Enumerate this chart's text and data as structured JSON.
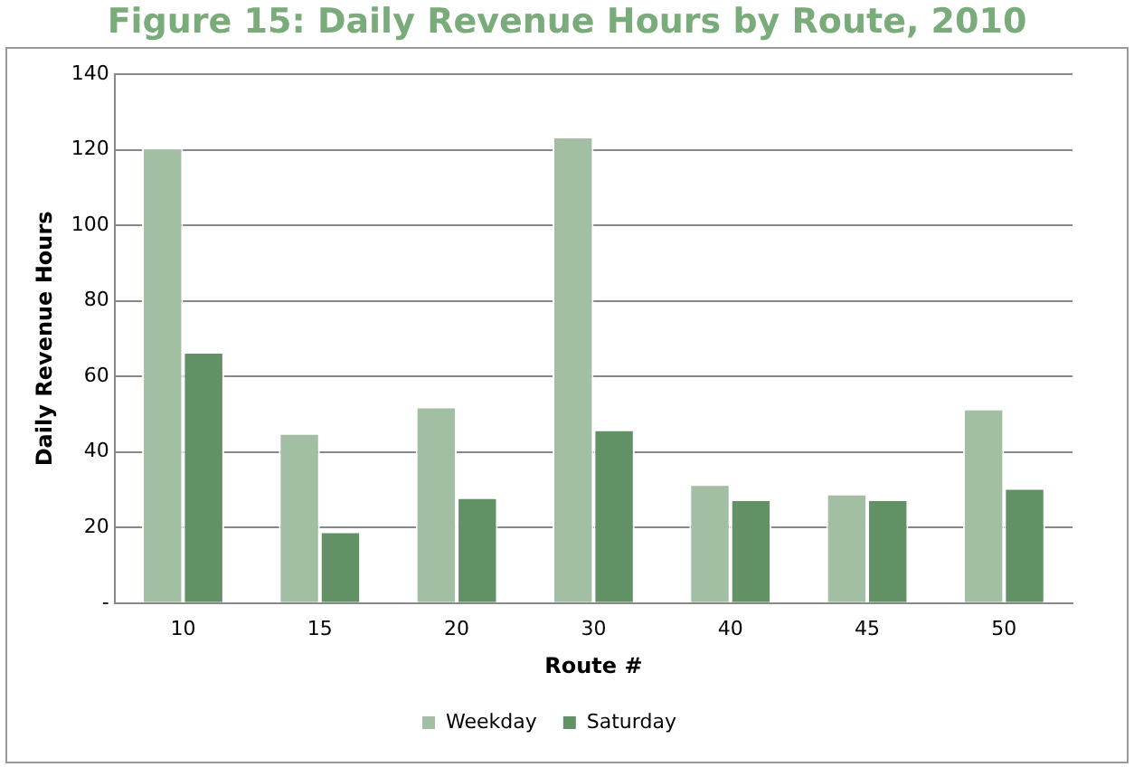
{
  "chart_data": {
    "type": "bar",
    "title": "Figure 15: Daily Revenue Hours by Route, 2010",
    "xlabel": "Route #",
    "ylabel": "Daily Revenue Hours",
    "categories": [
      "10",
      "15",
      "20",
      "30",
      "40",
      "45",
      "50"
    ],
    "series": [
      {
        "name": "Weekday",
        "color": "#a3bfa3",
        "values": [
          120.5,
          45,
          52,
          123.5,
          31.5,
          29,
          51.5
        ]
      },
      {
        "name": "Saturday",
        "color": "#629166",
        "values": [
          66.5,
          19,
          28,
          46,
          27.5,
          27.5,
          30.5
        ]
      }
    ],
    "ylim": [
      0,
      140
    ],
    "yticks": [
      {
        "value": 0,
        "label": "-"
      },
      20,
      40,
      60,
      80,
      100,
      120,
      140
    ],
    "grid": "y",
    "legend": "bottom"
  }
}
